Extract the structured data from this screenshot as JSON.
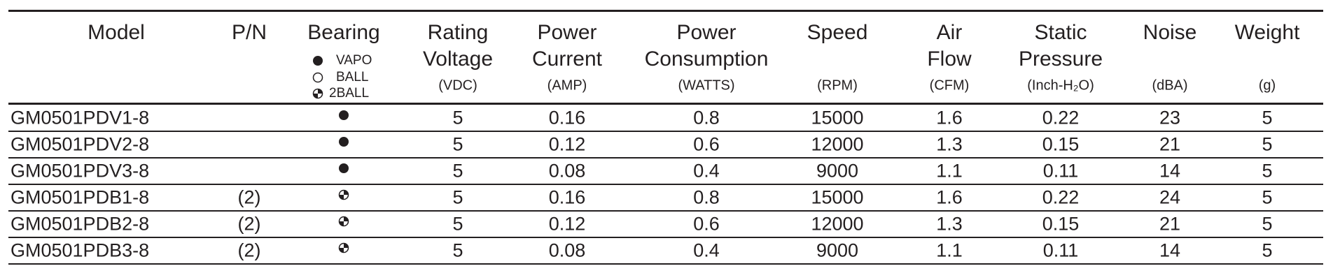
{
  "header": {
    "columns": [
      {
        "title": [
          "Model"
        ]
      },
      {
        "title": [
          "P/N"
        ]
      },
      {
        "title": [
          "Bearing"
        ],
        "legend": [
          "VAPO",
          "BALL",
          "2BALL"
        ]
      },
      {
        "title": [
          "Rating",
          "Voltage"
        ],
        "unit": "(VDC)"
      },
      {
        "title": [
          "Power",
          "Current"
        ],
        "unit": "(AMP)"
      },
      {
        "title": [
          "Power",
          "Consumption"
        ],
        "unit": "(WATTS)"
      },
      {
        "title": [
          "Speed"
        ],
        "unit": "(RPM)"
      },
      {
        "title": [
          "Air",
          "Flow"
        ],
        "unit": "(CFM)"
      },
      {
        "title": [
          "Static",
          "Pressure"
        ],
        "unit": "(Inch-H₂O)"
      },
      {
        "title": [
          "Noise"
        ],
        "unit": "(dBA)"
      },
      {
        "title": [
          "Weight"
        ],
        "unit": "(g)"
      }
    ]
  },
  "table": {
    "rows": [
      [
        "GM0501PDV1-8",
        null,
        "VAPO",
        "5",
        "0.16",
        "0.8",
        "15000",
        "1.6",
        "0.22",
        "23",
        "5"
      ],
      [
        "GM0501PDV2-8",
        null,
        "VAPO",
        "5",
        "0.12",
        "0.6",
        "12000",
        "1.3",
        "0.15",
        "21",
        "5"
      ],
      [
        "GM0501PDV3-8",
        null,
        "VAPO",
        "5",
        "0.08",
        "0.4",
        "9000",
        "1.1",
        "0.11",
        "14",
        "5"
      ],
      [
        "GM0501PDB1-8",
        "(2)",
        "2BALL",
        "5",
        "0.16",
        "0.8",
        "15000",
        "1.6",
        "0.22",
        "24",
        "5"
      ],
      [
        "GM0501PDB2-8",
        "(2)",
        "2BALL",
        "5",
        "0.12",
        "0.6",
        "12000",
        "1.3",
        "0.15",
        "21",
        "5"
      ],
      [
        "GM0501PDB3-8",
        "(2)",
        "2BALL",
        "5",
        "0.08",
        "0.4",
        "9000",
        "1.1",
        "0.11",
        "14",
        "5"
      ]
    ]
  }
}
